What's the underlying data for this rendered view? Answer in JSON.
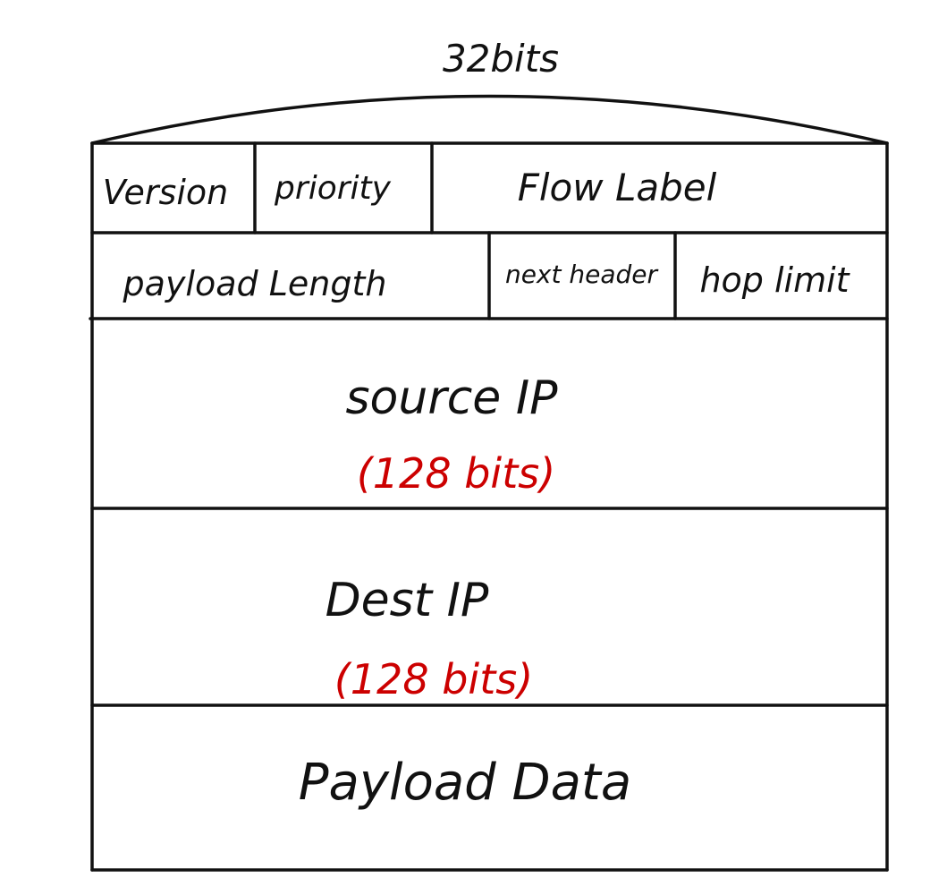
{
  "header": {
    "width_label": "32bits"
  },
  "rows": {
    "row1": {
      "version": "Version",
      "priority": "priority",
      "flow_label": "Flow Label"
    },
    "row2": {
      "payload_length": "payload Length",
      "next_header": "next header",
      "hop_limit": "hop limit"
    },
    "source": {
      "label": "source IP",
      "size": "(128 bits)"
    },
    "dest": {
      "label": "Dest IP",
      "size": "(128 bits)"
    },
    "payload": {
      "label": "Payload Data"
    }
  },
  "colors": {
    "ink": "#111111",
    "annotation": "#cc0000"
  }
}
